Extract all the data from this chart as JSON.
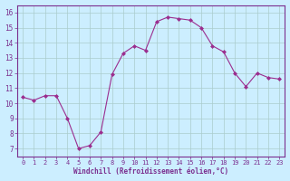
{
  "x": [
    0,
    1,
    2,
    3,
    4,
    5,
    6,
    7,
    8,
    9,
    10,
    11,
    12,
    13,
    14,
    15,
    16,
    17,
    18,
    19,
    20,
    21,
    22,
    23
  ],
  "y": [
    10.4,
    10.2,
    10.5,
    10.5,
    9.0,
    7.0,
    7.2,
    8.1,
    11.9,
    13.3,
    13.8,
    13.5,
    15.4,
    15.7,
    15.6,
    15.5,
    15.0,
    13.8,
    13.4,
    12.0,
    11.1,
    12.0,
    11.7,
    11.6
  ],
  "line_color": "#9b2d8e",
  "marker": "D",
  "marker_size": 2.0,
  "bg_color": "#cceeff",
  "grid_color": "#aacccc",
  "xlabel": "Windchill (Refroidissement éolien,°C)",
  "xlabel_color": "#7b2f8f",
  "xlim": [
    -0.5,
    23.5
  ],
  "ylim": [
    6.5,
    16.5
  ],
  "yticks": [
    7,
    8,
    9,
    10,
    11,
    12,
    13,
    14,
    15,
    16
  ],
  "xticks": [
    0,
    1,
    2,
    3,
    4,
    5,
    6,
    7,
    8,
    9,
    10,
    11,
    12,
    13,
    14,
    15,
    16,
    17,
    18,
    19,
    20,
    21,
    22,
    23
  ],
  "tick_color": "#7b2f8f",
  "spine_color": "#7b2f8f"
}
